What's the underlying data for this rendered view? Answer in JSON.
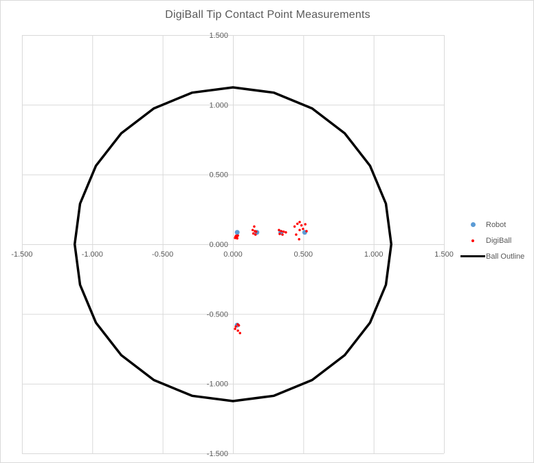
{
  "title": "DigiBall Tip Contact Point Measurements",
  "legend": {
    "items": [
      {
        "label": "Robot",
        "marker": "circle-marker-icon",
        "color": "#5B9BD5"
      },
      {
        "label": "DigiBall",
        "marker": "dot-marker-icon",
        "color": "#FF0000"
      },
      {
        "label": "Ball Outline",
        "marker": "line-marker-icon",
        "color": "#000000"
      }
    ]
  },
  "colors": {
    "title_text": "#595959",
    "axis_text": "#595959",
    "gridline": "#D9D9D9",
    "chart_border": "#D9D9D9",
    "background": "#FFFFFF",
    "robot": "#5B9BD5",
    "digiball": "#FF0000",
    "outline": "#000000"
  },
  "chart_data": {
    "type": "scatter",
    "title": "DigiBall Tip Contact Point Measurements",
    "xlabel": "",
    "ylabel": "",
    "xlim": [
      -1.5,
      1.5
    ],
    "ylim": [
      -1.5,
      1.5
    ],
    "grid": true,
    "legend_position": "right",
    "tick_values": [
      -1.5,
      -1.0,
      -0.5,
      0.0,
      0.5,
      1.0,
      1.5
    ],
    "tick_labels": [
      "-1.500",
      "-1.000",
      "-0.500",
      "0.000",
      "0.500",
      "1.000",
      "1.500"
    ],
    "series": [
      {
        "name": "Robot",
        "type": "scatter",
        "color": "#5B9BD5",
        "marker_px": 7,
        "points": [
          [
            0.03,
            0.085
          ],
          [
            0.17,
            0.085
          ],
          [
            0.34,
            0.085
          ],
          [
            0.51,
            0.085
          ],
          [
            0.03,
            -0.58
          ]
        ]
      },
      {
        "name": "DigiBall",
        "type": "scatter",
        "color": "#FF0000",
        "marker_px": 3.5,
        "points": [
          [
            0.023,
            0.061
          ],
          [
            0.018,
            0.055
          ],
          [
            0.028,
            0.05
          ],
          [
            0.035,
            0.062
          ],
          [
            0.015,
            0.045
          ],
          [
            0.03,
            0.042
          ],
          [
            0.151,
            0.127
          ],
          [
            0.14,
            0.102
          ],
          [
            0.156,
            0.094
          ],
          [
            0.165,
            0.09
          ],
          [
            0.145,
            0.077
          ],
          [
            0.16,
            0.069
          ],
          [
            0.327,
            0.102
          ],
          [
            0.343,
            0.094
          ],
          [
            0.36,
            0.09
          ],
          [
            0.376,
            0.085
          ],
          [
            0.332,
            0.074
          ],
          [
            0.352,
            0.069
          ],
          [
            0.438,
            0.127
          ],
          [
            0.458,
            0.147
          ],
          [
            0.474,
            0.159
          ],
          [
            0.487,
            0.135
          ],
          [
            0.514,
            0.143
          ],
          [
            0.498,
            0.11
          ],
          [
            0.474,
            0.102
          ],
          [
            0.449,
            0.069
          ],
          [
            0.47,
            0.036
          ],
          [
            0.523,
            0.094
          ],
          [
            0.033,
            -0.575
          ],
          [
            0.02,
            -0.59
          ],
          [
            0.042,
            -0.582
          ],
          [
            0.015,
            -0.607
          ],
          [
            0.035,
            -0.62
          ],
          [
            0.05,
            -0.637
          ]
        ]
      },
      {
        "name": "Ball Outline",
        "type": "line",
        "color": "#000000",
        "stroke_px": 3.5,
        "radius": 1.125,
        "points": [
          [
            1.125,
            0.0
          ],
          [
            1.087,
            0.291
          ],
          [
            0.974,
            0.563
          ],
          [
            0.795,
            0.795
          ],
          [
            0.563,
            0.974
          ],
          [
            0.291,
            1.087
          ],
          [
            0.0,
            1.125
          ],
          [
            -0.291,
            1.087
          ],
          [
            -0.563,
            0.974
          ],
          [
            -0.795,
            0.795
          ],
          [
            -0.974,
            0.563
          ],
          [
            -1.087,
            0.291
          ],
          [
            -1.125,
            0.0
          ],
          [
            -1.087,
            -0.291
          ],
          [
            -0.974,
            -0.563
          ],
          [
            -0.795,
            -0.795
          ],
          [
            -0.563,
            -0.974
          ],
          [
            -0.291,
            -1.087
          ],
          [
            0.0,
            -1.125
          ],
          [
            0.291,
            -1.087
          ],
          [
            0.563,
            -0.974
          ],
          [
            0.795,
            -0.795
          ],
          [
            0.974,
            -0.563
          ],
          [
            1.087,
            -0.291
          ],
          [
            1.125,
            0.0
          ]
        ]
      }
    ]
  }
}
